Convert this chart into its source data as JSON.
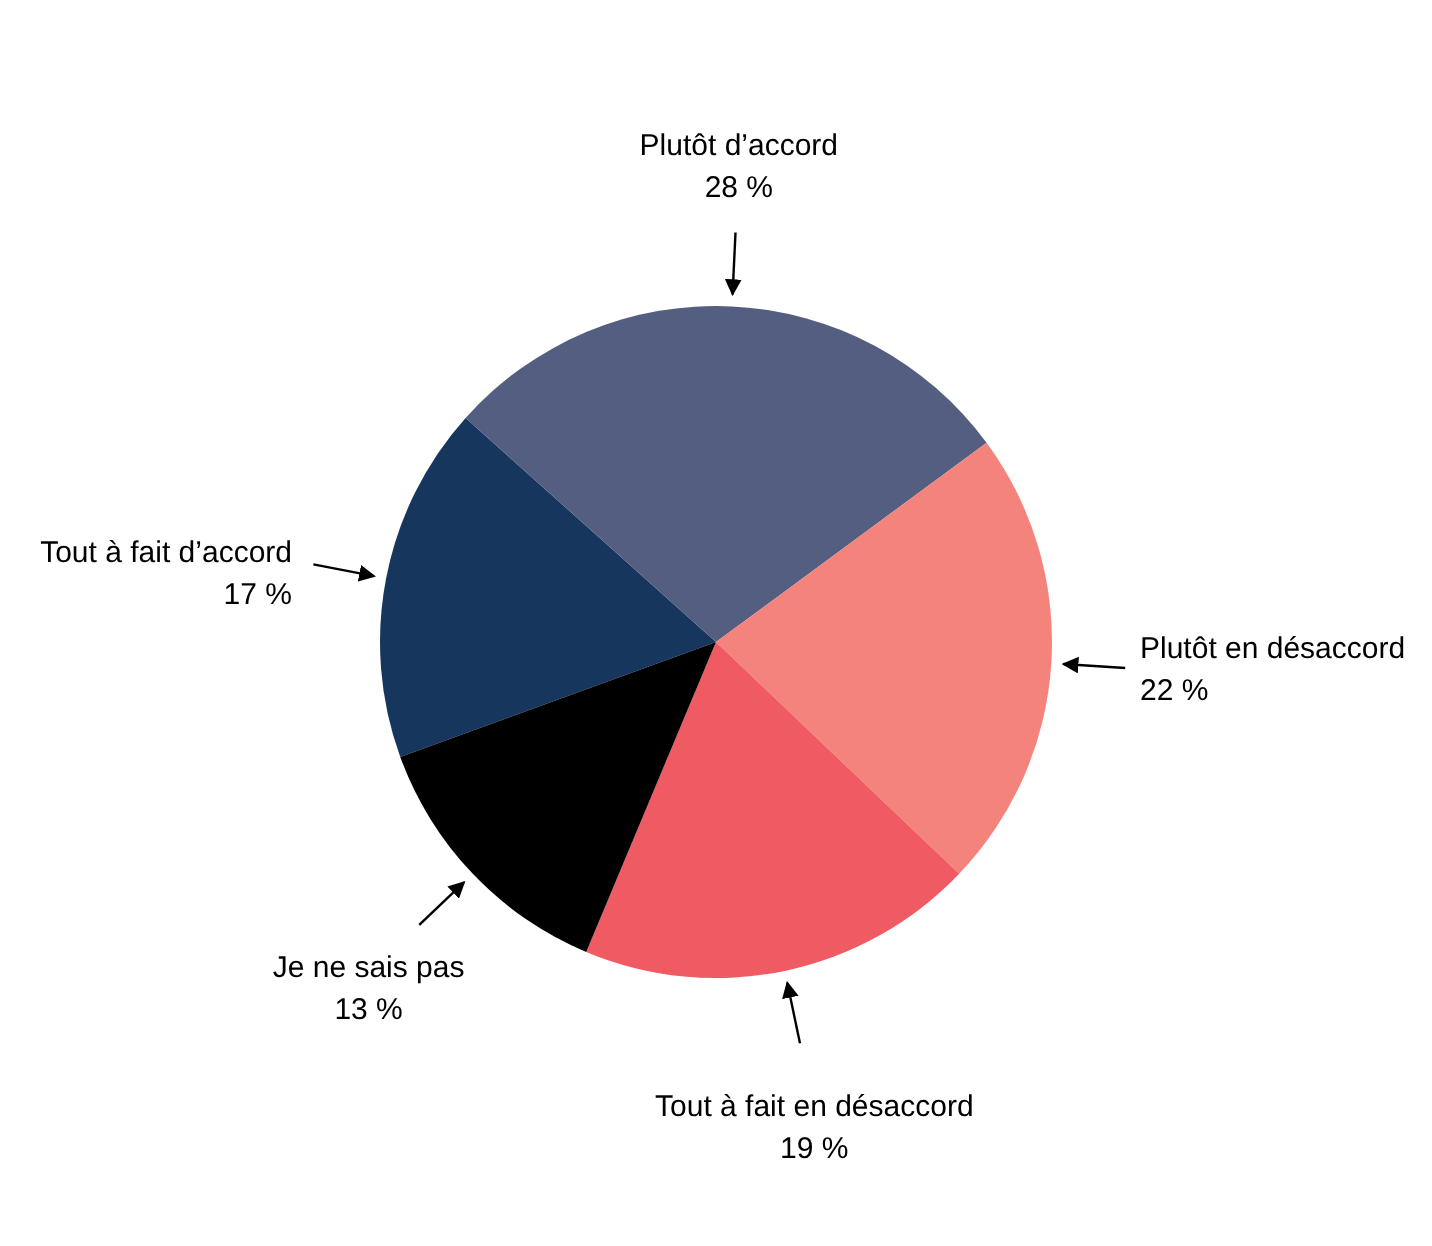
{
  "chart_data": {
    "type": "pie",
    "categories": [
      "Tout à fait d’accord",
      "Plutôt d’accord",
      "Plutôt en désaccord",
      "Tout à fait en désaccord",
      "Je ne sais pas"
    ],
    "values": [
      17,
      28,
      22,
      19,
      13
    ],
    "value_labels": [
      "17 %",
      "28 %",
      "22 %",
      "19 %",
      "13 %"
    ],
    "colors": [
      "#17365d",
      "#535e80",
      "#f4837b",
      "#ef5a63",
      "#000000"
    ]
  }
}
